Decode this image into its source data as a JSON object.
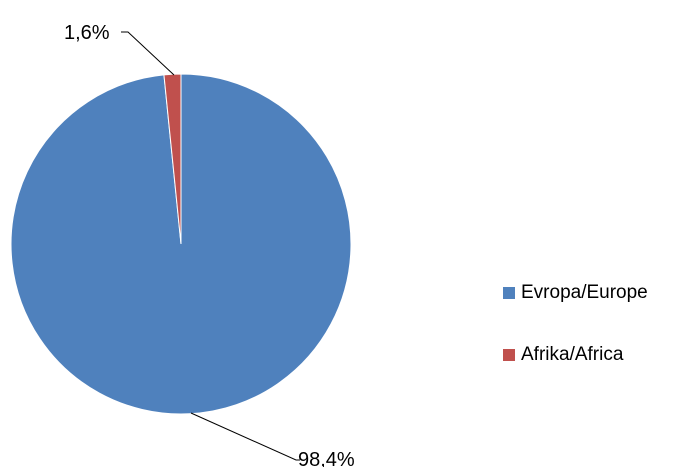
{
  "chart_data": {
    "type": "pie",
    "title": "",
    "categories": [
      "Evropa/Europe",
      "Afrika/Africa"
    ],
    "values": [
      98.4,
      1.6
    ],
    "data_labels": [
      "98,4%",
      "1,6%"
    ],
    "colors": [
      "#4F81BD",
      "#C0504D"
    ],
    "legend_position": "right",
    "start_angle": "12 o'clock, clockwise"
  },
  "legend": {
    "items": [
      {
        "label": "Evropa/Europe",
        "color": "#4F81BD"
      },
      {
        "label": "Afrika/Africa",
        "color": "#C0504D"
      }
    ]
  }
}
